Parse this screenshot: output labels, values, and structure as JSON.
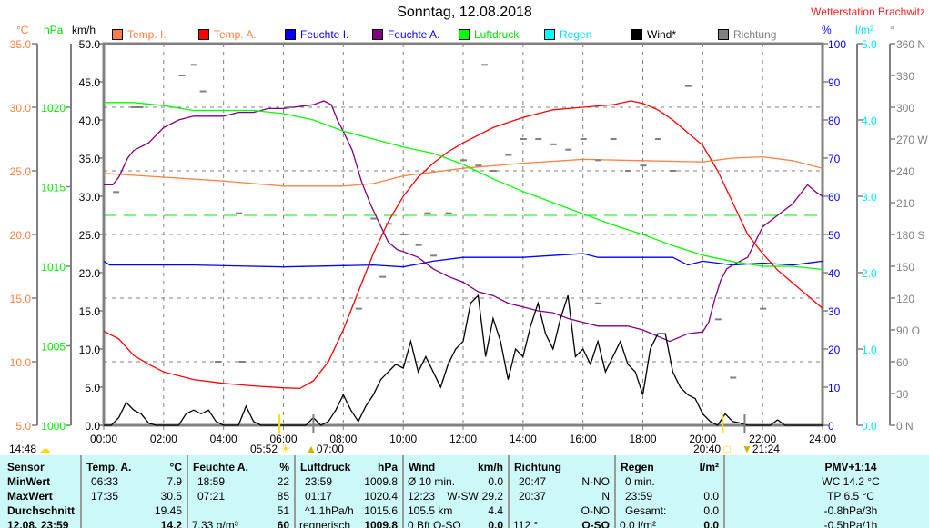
{
  "header": {
    "title": "Sonntag, 12.08.2018",
    "station": "Wetterstation Brachwitz"
  },
  "units": {
    "temp": "°C",
    "pressure": "hPa",
    "wind": "km/h",
    "humidity": "%",
    "rain": "l/m²",
    "direction": "°"
  },
  "legend": [
    {
      "label": "Temp. I.",
      "color": "#ff8040",
      "text_color": "#ff8040"
    },
    {
      "label": "Temp. A.",
      "color": "#ff0000",
      "text_color": "#ff8040"
    },
    {
      "label": "Feuchte I.",
      "color": "#0000ff",
      "text_color": "#0000ff"
    },
    {
      "label": "Feuchte A.",
      "color": "#800080",
      "text_color": "#0000ff"
    },
    {
      "label": "Luftdruck",
      "color": "#00ff00",
      "text_color": "#00dd00"
    },
    {
      "label": "Regen",
      "color": "#00ffff",
      "text_color": "#00e0ff"
    },
    {
      "label": "Wind*",
      "color": "#000000",
      "text_color": "#000000"
    },
    {
      "label": "Richtung",
      "color": "#808080",
      "text_color": "#808080"
    }
  ],
  "colors": {
    "temp_axis": "#ff8040",
    "pressure_axis": "#00ee00",
    "humidity_axis": "#0000ff",
    "rain_axis": "#00e8ff",
    "dir_axis": "#808080",
    "table_bg": "#ccf8f8"
  },
  "sun_moon": {
    "left_time": "14:48",
    "sunrise": "05:52",
    "moonrise": "07:00",
    "sunset": "20:40",
    "moonset": "21:24"
  },
  "chart_data": {
    "type": "line",
    "title": "Sonntag, 12.08.2018",
    "x_range_hours": [
      0,
      24
    ],
    "x_ticks": [
      "00:00",
      "02:00",
      "04:00",
      "06:00",
      "08:00",
      "10:00",
      "12:00",
      "14:00",
      "16:00",
      "18:00",
      "20:00",
      "22:00",
      "24:00"
    ],
    "axes": {
      "temp": {
        "range": [
          5,
          35
        ],
        "ticks": [
          "5.0",
          "10.0",
          "15.0",
          "20.0",
          "25.0",
          "30.0",
          "35.0"
        ]
      },
      "pressure": {
        "range": [
          1000,
          1024
        ],
        "ticks": [
          "1000",
          "1005",
          "1010",
          "1015",
          "1020"
        ]
      },
      "wind": {
        "range": [
          0,
          50
        ],
        "ticks": [
          "0.0",
          "5.0",
          "10.0",
          "15.0",
          "20.0",
          "25.0",
          "30.0",
          "35.0",
          "40.0",
          "45.0",
          "50.0"
        ]
      },
      "humidity": {
        "range": [
          0,
          100
        ],
        "ticks": [
          "0",
          "10",
          "20",
          "30",
          "40",
          "50",
          "60",
          "70",
          "80",
          "90",
          "100"
        ]
      },
      "rain": {
        "range": [
          0,
          5
        ],
        "ticks": [
          "0.0",
          "1.0",
          "2.0",
          "3.0",
          "4.0",
          "5.0"
        ]
      },
      "direction": {
        "range": [
          0,
          360
        ],
        "ticks": [
          "0   N",
          "30",
          "60",
          "90  O",
          "120",
          "150",
          "180 S",
          "210",
          "240",
          "270 W",
          "300",
          "330",
          "360 N"
        ]
      }
    },
    "pressure_reference": 1013.2,
    "series": [
      {
        "name": "Temp. I.",
        "axis": "temp",
        "color": "#ff8040",
        "points": [
          [
            0,
            24.8
          ],
          [
            2,
            24.5
          ],
          [
            4,
            24.2
          ],
          [
            6,
            23.8
          ],
          [
            8,
            23.8
          ],
          [
            9,
            24
          ],
          [
            10,
            24.6
          ],
          [
            12,
            25.2
          ],
          [
            14,
            25.6
          ],
          [
            16,
            25.9
          ],
          [
            18,
            25.8
          ],
          [
            20,
            25.7
          ],
          [
            21,
            26
          ],
          [
            22,
            26.1
          ],
          [
            23,
            25.8
          ],
          [
            24,
            25.2
          ]
        ]
      },
      {
        "name": "Temp. A.",
        "axis": "temp",
        "color": "#ff0000",
        "points": [
          [
            0,
            12.4
          ],
          [
            0.5,
            11.8
          ],
          [
            1,
            10.5
          ],
          [
            1.5,
            9.8
          ],
          [
            2,
            9.2
          ],
          [
            3,
            8.6
          ],
          [
            4,
            8.3
          ],
          [
            5,
            8.1
          ],
          [
            6,
            7.95
          ],
          [
            6.55,
            7.9
          ],
          [
            7,
            8.5
          ],
          [
            7.5,
            10
          ],
          [
            8,
            12.5
          ],
          [
            8.5,
            15.5
          ],
          [
            9,
            18.5
          ],
          [
            9.5,
            21
          ],
          [
            10,
            23
          ],
          [
            10.5,
            24.5
          ],
          [
            11,
            25.6
          ],
          [
            11.5,
            26.5
          ],
          [
            12,
            27.2
          ],
          [
            12.5,
            27.8
          ],
          [
            13,
            28.4
          ],
          [
            13.5,
            28.8
          ],
          [
            14,
            29.2
          ],
          [
            15,
            29.8
          ],
          [
            16,
            30
          ],
          [
            16.5,
            30.1
          ],
          [
            17,
            30.2
          ],
          [
            17.6,
            30.5
          ],
          [
            18,
            30.3
          ],
          [
            18.5,
            29.8
          ],
          [
            19,
            29
          ],
          [
            19.5,
            28
          ],
          [
            20,
            27
          ],
          [
            20.5,
            25
          ],
          [
            21,
            22.5
          ],
          [
            21.5,
            20
          ],
          [
            22,
            18.5
          ],
          [
            22.5,
            17.2
          ],
          [
            23,
            16.2
          ],
          [
            23.5,
            15.2
          ],
          [
            24,
            14.2
          ]
        ]
      },
      {
        "name": "Feuchte I.",
        "axis": "humidity",
        "color": "#0000ff",
        "points": [
          [
            0,
            43
          ],
          [
            0.2,
            42
          ],
          [
            3,
            42
          ],
          [
            6,
            41.5
          ],
          [
            9,
            42
          ],
          [
            10,
            41.5
          ],
          [
            11,
            43
          ],
          [
            12,
            44
          ],
          [
            14,
            44
          ],
          [
            16,
            45
          ],
          [
            16.5,
            44
          ],
          [
            18,
            44
          ],
          [
            19,
            44
          ],
          [
            19.5,
            42
          ],
          [
            20,
            43
          ],
          [
            21,
            42
          ],
          [
            22,
            42.5
          ],
          [
            23,
            42
          ],
          [
            24,
            43
          ]
        ]
      },
      {
        "name": "Feuchte A.",
        "axis": "humidity",
        "color": "#800080",
        "points": [
          [
            0,
            63
          ],
          [
            0.3,
            63
          ],
          [
            0.5,
            65
          ],
          [
            0.8,
            70
          ],
          [
            1,
            72
          ],
          [
            1.5,
            74
          ],
          [
            2,
            78
          ],
          [
            2.5,
            80
          ],
          [
            3,
            81
          ],
          [
            3.5,
            81
          ],
          [
            4,
            81
          ],
          [
            4.5,
            82
          ],
          [
            5,
            82
          ],
          [
            5.5,
            83
          ],
          [
            6,
            83
          ],
          [
            6.5,
            83.5
          ],
          [
            7,
            84
          ],
          [
            7.35,
            85
          ],
          [
            7.6,
            84
          ],
          [
            7.8,
            80
          ],
          [
            8,
            77
          ],
          [
            8.3,
            72
          ],
          [
            8.6,
            64
          ],
          [
            8.9,
            58
          ],
          [
            9.2,
            53
          ],
          [
            9.5,
            48
          ],
          [
            9.8,
            46
          ],
          [
            10,
            45.5
          ],
          [
            10.5,
            44
          ],
          [
            11,
            41
          ],
          [
            11.5,
            39
          ],
          [
            12,
            37.5
          ],
          [
            12.5,
            35
          ],
          [
            13,
            34
          ],
          [
            13.5,
            32
          ],
          [
            14,
            31
          ],
          [
            14.5,
            30
          ],
          [
            15,
            29.5
          ],
          [
            15.5,
            28
          ],
          [
            16,
            27
          ],
          [
            16.5,
            26
          ],
          [
            17,
            26
          ],
          [
            17.5,
            26
          ],
          [
            18,
            25
          ],
          [
            18.9,
            22
          ],
          [
            19.5,
            24
          ],
          [
            20,
            24.5
          ],
          [
            20.2,
            27
          ],
          [
            20.4,
            33
          ],
          [
            20.6,
            38
          ],
          [
            20.8,
            41
          ],
          [
            21,
            42
          ],
          [
            21.5,
            44
          ],
          [
            22,
            52
          ],
          [
            22.5,
            55
          ],
          [
            23,
            58
          ],
          [
            23.5,
            63
          ],
          [
            23.8,
            61
          ],
          [
            24,
            60
          ]
        ]
      },
      {
        "name": "Luftdruck",
        "axis": "pressure",
        "color": "#00ff00",
        "points": [
          [
            0,
            1020.3
          ],
          [
            1,
            1020.3
          ],
          [
            2,
            1020.1
          ],
          [
            3,
            1019.8
          ],
          [
            4,
            1019.8
          ],
          [
            5,
            1019.8
          ],
          [
            6,
            1019.6
          ],
          [
            7,
            1019.2
          ],
          [
            8,
            1018.5
          ],
          [
            9,
            1018
          ],
          [
            10,
            1017.5
          ],
          [
            11,
            1017.1
          ],
          [
            12,
            1016.4
          ],
          [
            13,
            1015.5
          ],
          [
            14,
            1014.7
          ],
          [
            15,
            1014
          ],
          [
            16,
            1013.3
          ],
          [
            17,
            1012.6
          ],
          [
            18,
            1012
          ],
          [
            19,
            1011.3
          ],
          [
            20,
            1010.7
          ],
          [
            21,
            1010.3
          ],
          [
            22,
            1010
          ],
          [
            23,
            1010
          ],
          [
            24,
            1009.8
          ]
        ]
      },
      {
        "name": "Wind*",
        "axis": "wind",
        "color": "#000000",
        "step_hours": 0.25,
        "values": [
          0,
          0,
          1,
          3,
          2,
          1.5,
          0.3,
          0,
          0,
          0,
          0,
          1.5,
          2,
          1.5,
          2,
          0.5,
          0,
          0,
          0,
          2.5,
          0.5,
          0,
          0,
          0,
          0,
          0,
          0,
          0,
          1,
          0,
          0.5,
          2,
          4,
          2,
          0.5,
          2.5,
          4,
          6,
          7,
          8,
          7.5,
          11,
          7,
          9,
          7,
          5,
          8,
          10,
          11,
          16,
          17,
          9,
          14,
          11,
          6,
          10,
          9,
          13,
          16,
          12,
          10,
          14,
          17,
          9,
          10,
          8,
          11,
          7,
          9,
          11,
          8,
          7,
          4,
          10,
          12,
          12,
          7,
          5,
          4,
          3.5,
          1.5,
          0.5,
          0,
          1.5,
          0.5,
          0.3,
          0,
          0,
          0,
          0,
          0.7,
          0,
          0,
          0,
          0,
          0,
          0
        ]
      },
      {
        "name": "Richtung",
        "axis": "direction",
        "color": "#808080",
        "kind": "scatter",
        "points": [
          [
            0.4,
            220
          ],
          [
            1,
            300
          ],
          [
            1.2,
            300
          ],
          [
            2.6,
            330
          ],
          [
            3,
            340
          ],
          [
            3.3,
            315
          ],
          [
            3.8,
            60
          ],
          [
            4.5,
            200
          ],
          [
            4.6,
            60
          ],
          [
            6.2,
            300
          ],
          [
            8.5,
            110
          ],
          [
            9,
            195
          ],
          [
            9.3,
            140
          ],
          [
            9.5,
            190
          ],
          [
            10,
            180
          ],
          [
            10.5,
            170
          ],
          [
            10.8,
            200
          ],
          [
            11,
            160
          ],
          [
            11.5,
            200
          ],
          [
            12,
            250
          ],
          [
            12.5,
            245
          ],
          [
            12.7,
            340
          ],
          [
            13,
            240
          ],
          [
            13.5,
            255
          ],
          [
            14,
            270
          ],
          [
            14.5,
            270
          ],
          [
            15,
            265
          ],
          [
            15.5,
            260
          ],
          [
            16,
            270
          ],
          [
            16.5,
            250
          ],
          [
            16.5,
            115
          ],
          [
            17,
            270
          ],
          [
            17.5,
            240
          ],
          [
            18,
            245
          ],
          [
            18.5,
            270
          ],
          [
            19,
            240
          ],
          [
            19.5,
            320
          ],
          [
            20.5,
            100
          ],
          [
            21,
            45
          ],
          [
            22,
            110
          ]
        ]
      }
    ]
  },
  "table": {
    "sensor": {
      "header": "Sensor",
      "rows": [
        "MinWert",
        "MaxWert",
        "Durchschnitt",
        "12.08. 23:59"
      ]
    },
    "columns": [
      {
        "header": [
          "Temp. A.",
          "°C"
        ],
        "rows": [
          [
            "06:33",
            "7.9"
          ],
          [
            "17:35",
            "30.5"
          ],
          [
            "",
            "19.45"
          ],
          [
            "",
            "14.2"
          ]
        ]
      },
      {
        "header": [
          "Feuchte A.",
          "%"
        ],
        "rows": [
          [
            "18:59",
            "22"
          ],
          [
            "07:21",
            "85"
          ],
          [
            "",
            "51"
          ],
          [
            "7.33 g/m³",
            "60"
          ]
        ]
      },
      {
        "header": [
          "Luftdruck",
          "hPa"
        ],
        "rows": [
          [
            "23:59",
            "1009.8"
          ],
          [
            "01:17",
            "1020.4"
          ],
          [
            "^1.1hPa/h",
            "1015.6"
          ],
          [
            "regnerisch",
            "1009.8"
          ]
        ]
      },
      {
        "header": [
          "Wind",
          "km/h"
        ],
        "rows": [
          [
            "Ø 10 min.",
            "0.0"
          ],
          [
            "12:23    W-SW",
            "29.2"
          ],
          [
            "105.5 km",
            "4.4"
          ],
          [
            "0 Bft O-SO",
            "0.0"
          ]
        ]
      },
      {
        "header": [
          "Richtung",
          ""
        ],
        "rows": [
          [
            "20:47",
            "N-NO"
          ],
          [
            "20:37",
            "N"
          ],
          [
            "",
            "O-NO"
          ],
          [
            "112 °",
            "O-SO"
          ]
        ]
      },
      {
        "header": [
          "Regen",
          "l/m²"
        ],
        "rows": [
          [
            "0 min.",
            ""
          ],
          [
            "23:59",
            "0.0"
          ],
          [
            "Gesamt:",
            "0.0"
          ],
          [
            "0.0 l/m²",
            "0.0"
          ]
        ]
      }
    ],
    "extra": [
      "PMV+1:14",
      "WC 14.2 °C",
      "TP 6.5 °C",
      "-0.8hPa/3h",
      "-0.5hPa/1h"
    ]
  }
}
